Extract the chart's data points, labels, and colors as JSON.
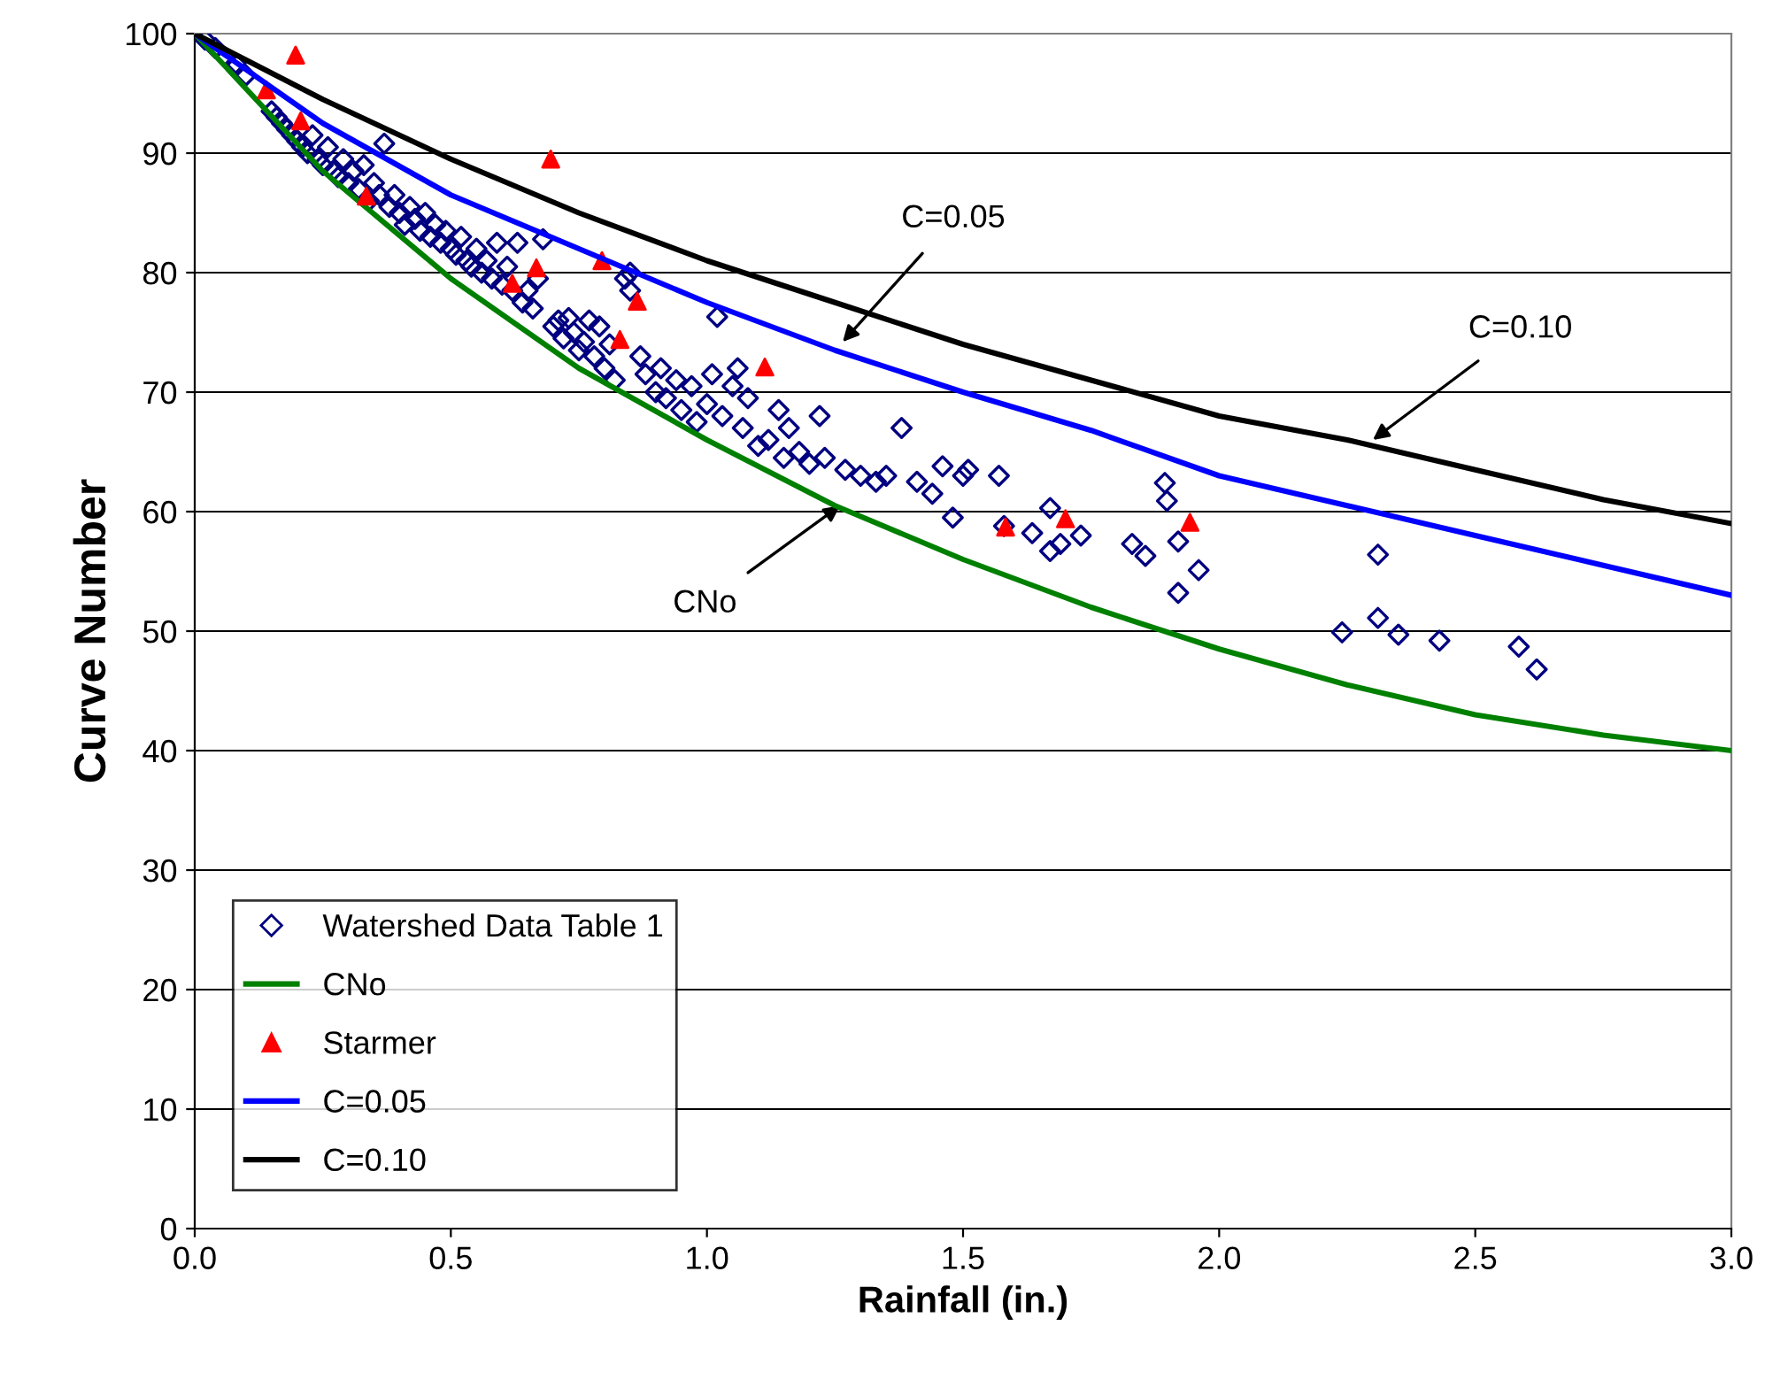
{
  "chart_data": {
    "type": "scatter",
    "xlabel": "Rainfall (in.)",
    "ylabel": "Curve Number",
    "xlim": [
      0,
      3.0
    ],
    "ylim": [
      0,
      100
    ],
    "xticks": [
      {
        "value": 0,
        "label": "0.0"
      },
      {
        "value": 0.5,
        "label": "0.5"
      },
      {
        "value": 1.0,
        "label": "1.0"
      },
      {
        "value": 1.5,
        "label": "1.5"
      },
      {
        "value": 2.0,
        "label": "2.0"
      },
      {
        "value": 2.5,
        "label": "2.5"
      },
      {
        "value": 3.0,
        "label": "3.0"
      }
    ],
    "yticks": [
      0,
      10,
      20,
      30,
      40,
      50,
      60,
      70,
      80,
      90,
      100
    ],
    "grid": "y",
    "legend": "bottom left",
    "annotations": [
      {
        "text": "C=0.05",
        "x": 1.265,
        "y": 74.2
      },
      {
        "text": "C=0.10",
        "x": 2.3,
        "y": 66
      },
      {
        "text": "CNo",
        "x": 1.26,
        "y": 60.5
      }
    ],
    "series": [
      {
        "name": "Watershed Data Table 1",
        "marker": "diamond",
        "color": "#000080",
        "x": [
          0.02,
          0.04,
          0.06,
          0.08,
          0.1,
          0.15,
          0.16,
          0.17,
          0.18,
          0.19,
          0.2,
          0.21,
          0.22,
          0.23,
          0.24,
          0.25,
          0.26,
          0.27,
          0.28,
          0.29,
          0.3,
          0.31,
          0.32,
          0.33,
          0.34,
          0.35,
          0.36,
          0.37,
          0.38,
          0.39,
          0.4,
          0.41,
          0.42,
          0.43,
          0.44,
          0.45,
          0.46,
          0.47,
          0.48,
          0.49,
          0.5,
          0.51,
          0.52,
          0.53,
          0.54,
          0.55,
          0.56,
          0.57,
          0.58,
          0.59,
          0.6,
          0.61,
          0.62,
          0.63,
          0.64,
          0.65,
          0.66,
          0.67,
          0.68,
          0.7,
          0.71,
          0.72,
          0.73,
          0.74,
          0.75,
          0.76,
          0.77,
          0.78,
          0.79,
          0.8,
          0.81,
          0.82,
          0.84,
          0.85,
          0.85,
          0.87,
          0.88,
          0.9,
          0.91,
          0.92,
          0.94,
          0.95,
          0.97,
          0.98,
          1.0,
          1.01,
          1.02,
          1.03,
          1.05,
          1.06,
          1.07,
          1.08,
          1.1,
          1.12,
          1.14,
          1.15,
          1.16,
          1.18,
          1.2,
          1.22,
          1.23,
          1.27,
          1.3,
          1.33,
          1.35,
          1.38,
          1.41,
          1.44,
          1.46,
          1.48,
          1.5,
          1.51,
          1.57,
          1.58,
          1.635,
          1.67,
          1.67,
          1.69,
          1.73,
          1.83,
          1.856,
          1.894,
          1.898,
          1.92,
          1.92,
          1.96,
          2.24,
          2.31,
          2.31,
          2.35,
          2.43,
          2.585,
          2.62
        ],
        "values": [
          99.5,
          98.8,
          98,
          97.5,
          96.5,
          93.5,
          93,
          92.5,
          92,
          91.5,
          91,
          90.5,
          90,
          91.5,
          89.5,
          89,
          90.5,
          88.5,
          88,
          89.5,
          87.5,
          88.5,
          87,
          89,
          86,
          87.5,
          86.5,
          90.8,
          85.5,
          86.5,
          85,
          84,
          85.5,
          84.5,
          83.5,
          85,
          83,
          84,
          82.5,
          83.5,
          82,
          81.5,
          83,
          81,
          80.5,
          82,
          80,
          81,
          79.5,
          82.5,
          79,
          80.5,
          78.5,
          82.5,
          77.5,
          78.5,
          77,
          79.5,
          82.8,
          75.5,
          76,
          74.5,
          76.2,
          75,
          73.5,
          74.2,
          76,
          73,
          75.5,
          72,
          74,
          71,
          79.5,
          78.5,
          80,
          73,
          71.5,
          70,
          72,
          69.5,
          71,
          68.5,
          70.5,
          67.5,
          69,
          71.5,
          76.3,
          68,
          70.5,
          72,
          67,
          69.5,
          65.5,
          66,
          68.5,
          64.5,
          67,
          65,
          64,
          68,
          64.5,
          63.5,
          63,
          62.5,
          63,
          67,
          62.5,
          61.5,
          63.8,
          59.5,
          63,
          63.5,
          63,
          58.8,
          58.2,
          60.3,
          56.7,
          57.3,
          58,
          57.3,
          56.3,
          62.4,
          60.9,
          57.5,
          53.2,
          55.1,
          49.9,
          56.4,
          51.1,
          49.7,
          49.2,
          48.7,
          46.8
        ]
      },
      {
        "name": "CNo",
        "type": "line",
        "marker": "none",
        "color": "#008000",
        "x": [
          0,
          0.25,
          0.5,
          0.75,
          1.0,
          1.25,
          1.5,
          1.75,
          2.0,
          2.25,
          2.5,
          2.75,
          3.0
        ],
        "values": [
          100,
          88.5,
          79.5,
          72,
          66,
          60.5,
          56,
          52,
          48.5,
          45.5,
          43,
          41.3,
          40
        ]
      },
      {
        "name": "Starmer",
        "marker": "triangle",
        "color": "#ff0000",
        "x": [
          0.14,
          0.197,
          0.207,
          0.335,
          0.62,
          0.695,
          0.667,
          0.795,
          0.864,
          0.83,
          1.113,
          1.583,
          1.7,
          1.943
        ],
        "values": [
          95.3,
          98.2,
          92.7,
          86.4,
          79.1,
          89.5,
          80.4,
          81,
          77.6,
          74.4,
          72.1,
          58.7,
          59.4,
          59.1
        ]
      },
      {
        "name": "C=0.05",
        "type": "line",
        "marker": "none",
        "color": "#0000ff",
        "x": [
          0,
          0.25,
          0.5,
          0.75,
          1.0,
          1.25,
          1.5,
          1.75,
          2.0,
          2.25,
          2.5,
          2.75,
          3.0
        ],
        "values": [
          100,
          92.5,
          86.5,
          82,
          77.5,
          73.5,
          70,
          66.8,
          63,
          60.5,
          58,
          55.5,
          53
        ]
      },
      {
        "name": "C=0.10",
        "type": "line",
        "marker": "none",
        "color": "#000000",
        "x": [
          0,
          0.25,
          0.5,
          0.75,
          1.0,
          1.25,
          1.5,
          1.75,
          2.0,
          2.25,
          2.5,
          2.75,
          3.0
        ],
        "values": [
          100,
          94.5,
          89.5,
          85,
          81,
          77.5,
          74,
          71,
          68,
          66,
          63.5,
          61,
          59
        ]
      }
    ]
  }
}
